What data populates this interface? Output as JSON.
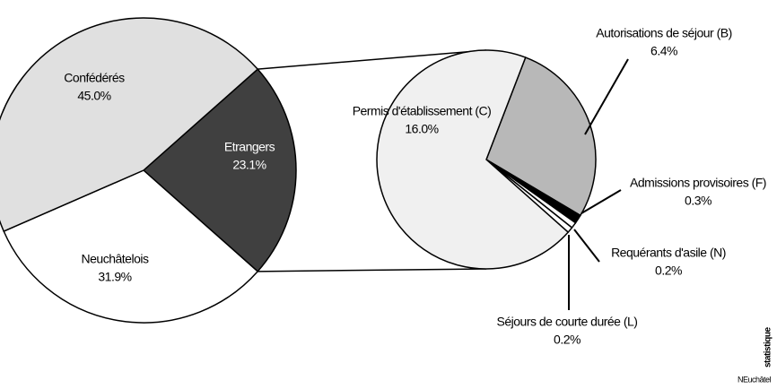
{
  "chart_data": [
    {
      "type": "pie",
      "categories": [
        "Etrangers",
        "Neuchâtelois",
        "Confédérés"
      ],
      "values": [
        23.1,
        31.9,
        45.0
      ],
      "value_labels": [
        "23.1%",
        "31.9%",
        "45.0%"
      ],
      "colors": [
        "#404040",
        "#ffffff",
        "#e0e0e0"
      ]
    },
    {
      "type": "pie",
      "categories": [
        "Autorisations de séjour (B)",
        "Admissions provisoires (F)",
        "Requérants d'asile (N)",
        "Séjours de courte durée (L)",
        "Permis d'établissement (C)"
      ],
      "values": [
        6.4,
        0.3,
        0.2,
        0.2,
        16.0
      ],
      "value_labels": [
        "6.4%",
        "0.3%",
        "0.2%",
        "0.2%",
        "16.0%"
      ],
      "colors": [
        "#b8b8b8",
        "#000000",
        "#ffffff",
        "#ffffff",
        "#f0f0f0"
      ]
    }
  ],
  "logo": {
    "brand": "NEuchâtel",
    "word": "statistique"
  }
}
